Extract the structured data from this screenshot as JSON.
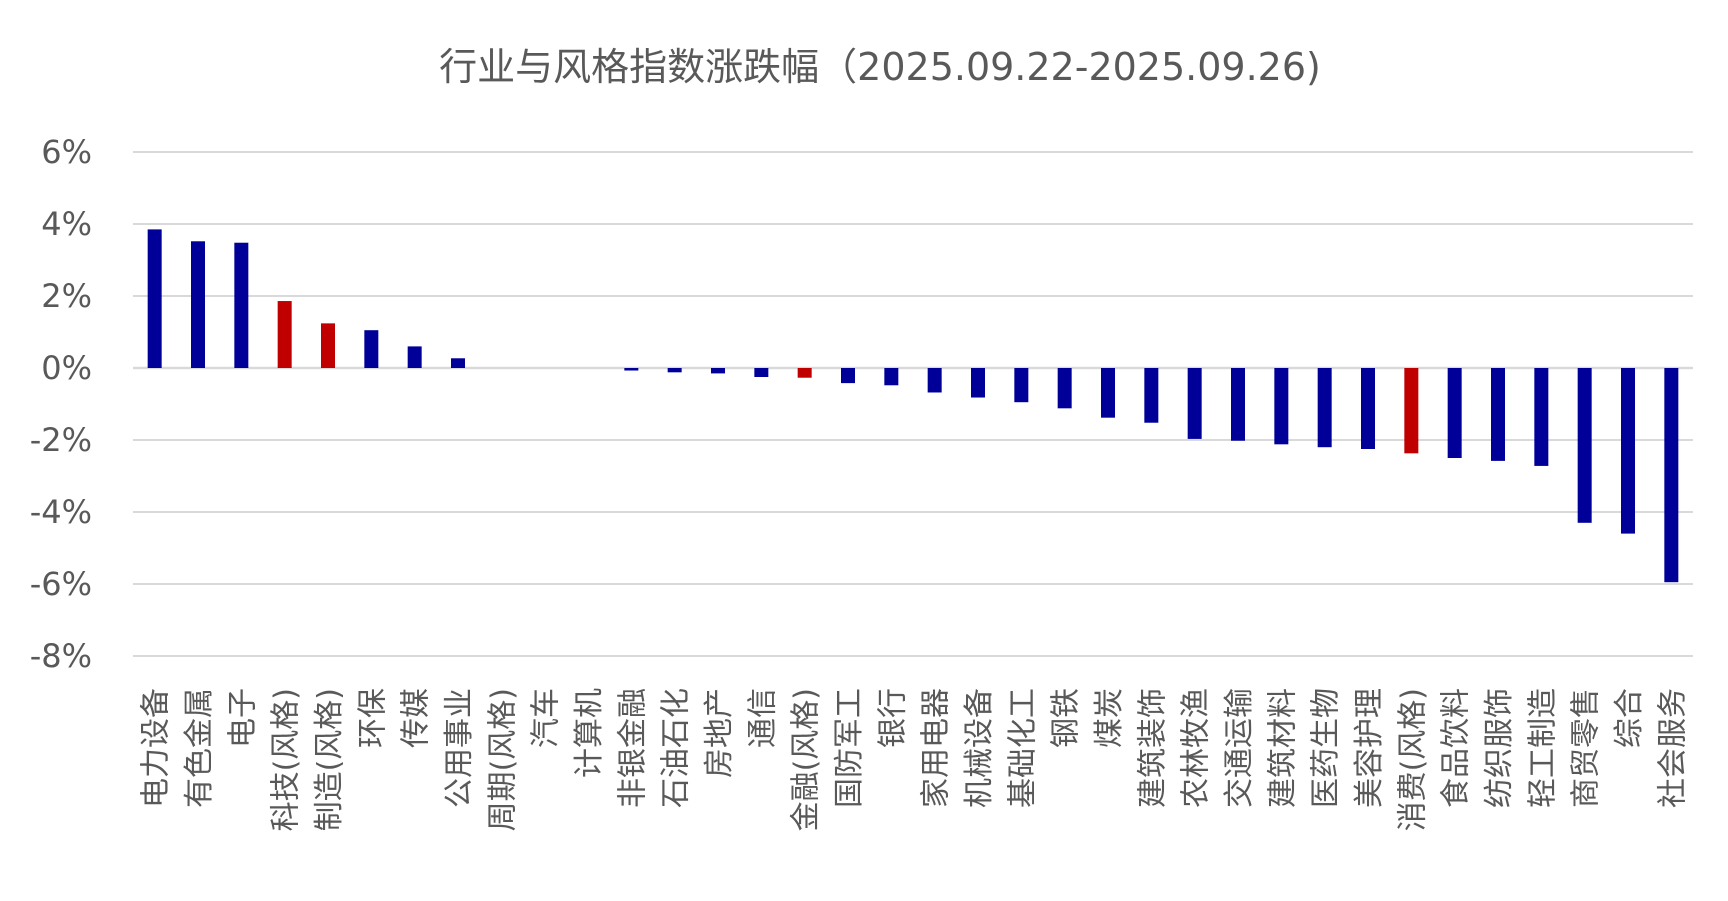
{
  "chart_data": {
    "type": "bar",
    "title": "行业与风格指数涨跌幅（2025.09.22-2025.09.26)",
    "xlabel": "",
    "ylabel": "",
    "ylim": [
      -8,
      6
    ],
    "yticks": [
      6,
      4,
      2,
      0,
      -2,
      -4,
      -6,
      -8
    ],
    "ytick_labels": [
      "6%",
      "4%",
      "2%",
      "0%",
      "-2%",
      "-4%",
      "-6%",
      "-8%"
    ],
    "grid": true,
    "legend": "none",
    "colors": {
      "industry": "#000099",
      "style": "#C00000",
      "grid": "#D9D9D9",
      "text": "#595959"
    },
    "categories": [
      "电力设备",
      "有色金属",
      "电子",
      "科技(风格)",
      "制造(风格)",
      "环保",
      "传媒",
      "公用事业",
      "周期(风格)",
      "汽车",
      "计算机",
      "非银金融",
      "石油石化",
      "房地产",
      "通信",
      "金融(风格)",
      "国防军工",
      "银行",
      "家用电器",
      "机械设备",
      "基础化工",
      "钢铁",
      "煤炭",
      "建筑装饰",
      "农林牧渔",
      "交通运输",
      "建筑材料",
      "医药生物",
      "美容护理",
      "消费(风格)",
      "食品饮料",
      "纺织服饰",
      "轻工制造",
      "商贸零售",
      "综合",
      "社会服务"
    ],
    "values": [
      3.85,
      3.52,
      3.48,
      1.86,
      1.24,
      1.05,
      0.6,
      0.27,
      0.0,
      0.0,
      0.0,
      -0.07,
      -0.12,
      -0.15,
      -0.25,
      -0.27,
      -0.42,
      -0.48,
      -0.68,
      -0.82,
      -0.95,
      -1.12,
      -1.38,
      -1.52,
      -1.97,
      -2.02,
      -2.12,
      -2.2,
      -2.25,
      -2.37,
      -2.5,
      -2.58,
      -2.72,
      -4.3,
      -4.6,
      -5.95
    ],
    "highlight": [
      "科技(风格)",
      "制造(风格)",
      "金融(风格)",
      "消费(风格)"
    ]
  }
}
